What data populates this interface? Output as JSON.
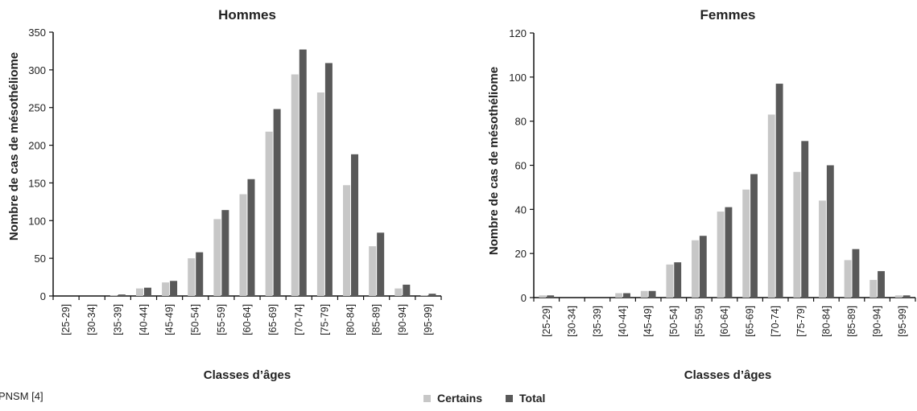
{
  "source": "PNSM [4]",
  "legend": [
    {
      "name": "Certains",
      "color": "#c7c7c7"
    },
    {
      "name": "Total",
      "color": "#595959"
    }
  ],
  "chart_data": [
    {
      "type": "bar",
      "title": "Hommes",
      "xlabel": "Classes d’âges",
      "ylabel": "Nombre de cas de mésothéliome",
      "ylim": [
        0,
        350
      ],
      "yticks": [
        0,
        50,
        100,
        150,
        200,
        250,
        300,
        350
      ],
      "categories": [
        "[25-29]",
        "[30-34]",
        "[35-39]",
        "[40-44]",
        "[45-49]",
        "[50-54]",
        "[55-59]",
        "[60-64]",
        "[65-69]",
        "[70-74]",
        "[75-79]",
        "[80-84]",
        "[85-89]",
        "[90-94]",
        "[95-99]"
      ],
      "series": [
        {
          "name": "Certains",
          "color": "#c7c7c7",
          "values": [
            0,
            0,
            1,
            10,
            18,
            50,
            102,
            135,
            218,
            294,
            270,
            147,
            66,
            10,
            1
          ]
        },
        {
          "name": "Total",
          "color": "#595959",
          "values": [
            0,
            0,
            2,
            11,
            20,
            58,
            114,
            155,
            248,
            327,
            309,
            188,
            84,
            15,
            3
          ]
        }
      ]
    },
    {
      "type": "bar",
      "title": "Femmes",
      "xlabel": "Classes d’âges",
      "ylabel": "Nombre de cas de mésothéliome",
      "ylim": [
        0,
        120
      ],
      "yticks": [
        0,
        20,
        40,
        60,
        80,
        100,
        120
      ],
      "categories": [
        "[25-29]",
        "[30-34]",
        "[35-39]",
        "[40-44]",
        "[45-49]",
        "[50-54]",
        "[55-59]",
        "[60-64]",
        "[65-69]",
        "[70-74]",
        "[75-79]",
        "[80-84]",
        "[85-89]",
        "[90-94]",
        "[95-99]"
      ],
      "series": [
        {
          "name": "Certains",
          "color": "#c7c7c7",
          "values": [
            1,
            0,
            0,
            2,
            3,
            15,
            26,
            39,
            49,
            83,
            57,
            44,
            17,
            8,
            1
          ]
        },
        {
          "name": "Total",
          "color": "#595959",
          "values": [
            1,
            0,
            0,
            2,
            3,
            16,
            28,
            41,
            56,
            97,
            71,
            60,
            22,
            12,
            1
          ]
        }
      ]
    }
  ]
}
